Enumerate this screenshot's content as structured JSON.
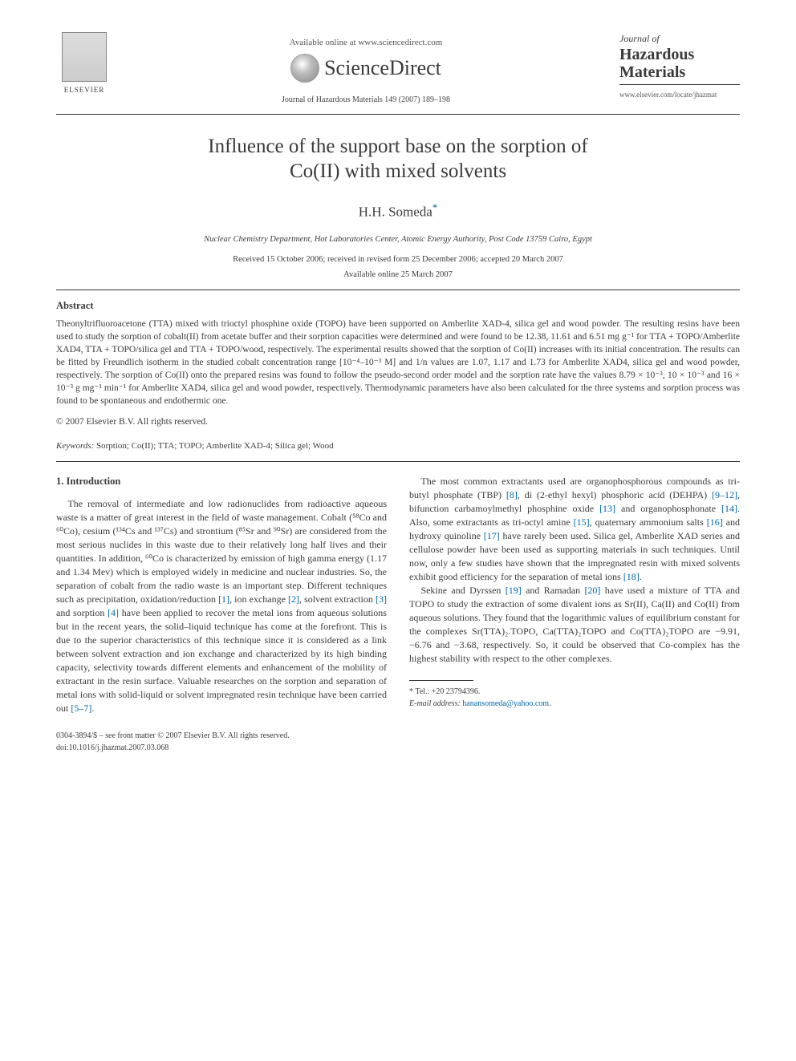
{
  "header": {
    "publisher_name": "ELSEVIER",
    "available_online": "Available online at www.sciencedirect.com",
    "sciencedirect": "ScienceDirect",
    "citation": "Journal of Hazardous Materials 149 (2007) 189–198",
    "journal_small": "Journal of",
    "journal_big1": "Hazardous",
    "journal_big2": "Materials",
    "journal_url": "www.elsevier.com/locate/jhazmat"
  },
  "article": {
    "title_line1": "Influence of the support base on the sorption of",
    "title_line2": "Co(II) with mixed solvents",
    "author": "H.H. Someda",
    "author_marker": "*",
    "affiliation": "Nuclear Chemistry Department, Hot Laboratories Center, Atomic Energy Authority, Post Code 13759 Cairo, Egypt",
    "dates_line1": "Received 15 October 2006; received in revised form 25 December 2006; accepted 20 March 2007",
    "dates_line2": "Available online 25 March 2007"
  },
  "abstract": {
    "heading": "Abstract",
    "text": "Theonyltrifluoroacetone (TTA) mixed with trioctyl phosphine oxide (TOPO) have been supported on Amberlite XAD-4, silica gel and wood powder. The resulting resins have been used to study the sorption of cobalt(II) from acetate buffer and their sorption capacities were determined and were found to be 12.38, 11.61 and 6.51 mg g⁻¹ for TTA + TOPO/Amberlite XAD4, TTA + TOPO/silica gel and TTA + TOPO/wood, respectively. The experimental results showed that the sorption of Co(II) increases with its initial concentration. The results can be fitted by Freundlich isotherm in the studied cobalt concentration range [10⁻⁴–10⁻³ M] and 1/n values are 1.07, 1.17 and 1.73 for Amberlite XAD4, silica gel and wood powder, respectively. The sorption of Co(II) onto the prepared resins was found to follow the pseudo-second order model and the sorption rate have the values 8.79 × 10⁻³, 10 × 10⁻³ and 16 × 10⁻³ g mg⁻¹ min⁻¹ for Amberlite XAD4, silica gel and wood powder, respectively. Thermodynamic parameters have also been calculated for the three systems and sorption process was found to be spontaneous and endothermic one.",
    "copyright": "© 2007 Elsevier B.V. All rights reserved.",
    "keywords_label": "Keywords:",
    "keywords_values": " Sorption; Co(II); TTA; TOPO; Amberlite XAD-4; Silica gel; Wood"
  },
  "body": {
    "intro_heading": "1.  Introduction",
    "p1a": "The removal of intermediate and low radionuclides from radioactive aqueous waste is a matter of great interest in the field of waste management. Cobalt (⁵⁸Co and ⁶⁰Co), cesium (¹³⁴Cs and ¹³⁷Cs) and strontium (⁸⁵Sr and ⁹⁰Sr) are considered from the most serious nuclides in this waste due to their relatively long half lives and their quantities. In addition, ⁶⁰Co is characterized by emission of high gamma energy (1.17 and 1.34 Mev) which is employed widely in medicine and nuclear industries. So, the separation of cobalt from the radio waste is an important step. Different techniques such as precipitation, oxidation/reduction ",
    "r1": "[1]",
    "p1b": ", ion exchange ",
    "r2": "[2]",
    "p1c": ", solvent extraction ",
    "r3": "[3]",
    "p1d": " and sorption ",
    "r4": "[4]",
    "p1e": " have been applied to recover the metal ions from aqueous solutions but in the recent years, the solid–liquid technique has come at the forefront. This is due to the superior characteristics of this technique since it is considered as a link between solvent extraction and ion exchange and characterized by its high binding capacity, selectivity towards different elements and enhancement of the mobility of extractant in the resin surface. Valuable researches on the sorption and separation of metal ions with solid-liquid or solvent impregnated resin technique have been carried out ",
    "r5": "[5–7]",
    "p1f": ".",
    "p2a": "The most common extractants used are organophosphorous compounds as tri-butyl phosphate (TBP) ",
    "r8": "[8]",
    "p2b": ", di (2-ethyl hexyl) phosphoric acid (DEHPA) ",
    "r9": "[9–12]",
    "p2c": ", bifunction carbamoylmethyl phosphine oxide ",
    "r13": "[13]",
    "p2d": " and organophosphonate ",
    "r14": "[14]",
    "p2e": ". Also, some extractants as tri-octyl amine ",
    "r15": "[15]",
    "p2f": ", quaternary ammonium salts ",
    "r16": "[16]",
    "p2g": " and hydroxy quinoline ",
    "r17": "[17]",
    "p2h": " have rarely been used. Silica gel, Amberlite XAD series and cellulose powder have been used as supporting materials in such techniques. Until now, only a few studies have shown that the impregnated resin with mixed solvents exhibit good efficiency for the separation of metal ions ",
    "r18": "[18]",
    "p2i": ".",
    "p3a": "Sekine and Dyrssen ",
    "r19": "[19]",
    "p3b": " and Ramadan ",
    "r20": "[20]",
    "p3c": " have used a mixture of TTA and TOPO to study the extraction of some divalent ions as Sr(II), Ca(II) and Co(II) from aqueous solutions. They found that the logarithmic values of equilibrium constant for the complexes Sr(TTA)₂.TOPO, Ca(TTA)₂TOPO and Co(TTA)₂TOPO are −9.91, −6.76 and −3.68, respectively. So, it could be observed that Co-complex has the highest stability with respect to the other complexes."
  },
  "footnote": {
    "tel_label": "* Tel.: ",
    "tel": "+20 23794396.",
    "email_label": "E-mail address: ",
    "email": "hanansomeda@yahoo.com",
    "email_suffix": "."
  },
  "bottom": {
    "line1": "0304-3894/$ – see front matter © 2007 Elsevier B.V. All rights reserved.",
    "line2": "doi:10.1016/j.jhazmat.2007.03.068"
  }
}
